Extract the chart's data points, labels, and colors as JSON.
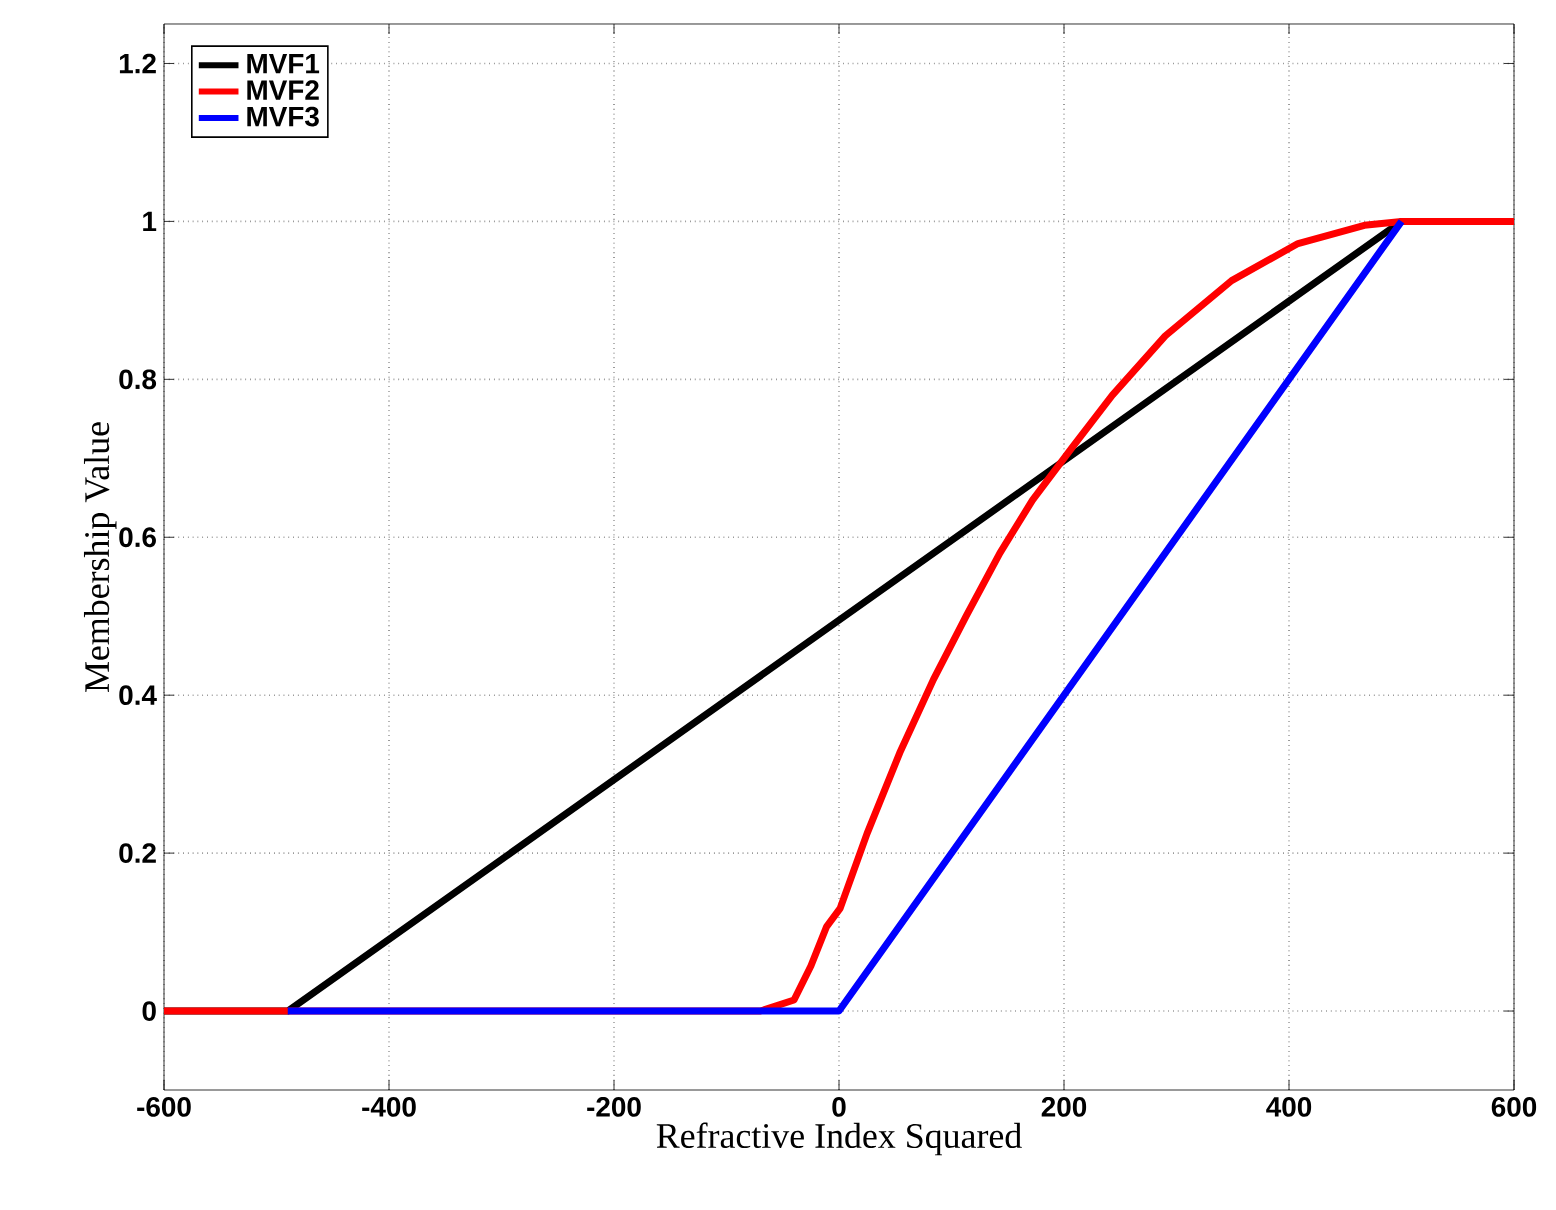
{
  "chart_data": {
    "type": "line",
    "xlabel": "Refractive Index Squared",
    "ylabel": "Membership Value",
    "xlim": [
      -600,
      600
    ],
    "ylim": [
      -0.1,
      1.25
    ],
    "xticks": [
      -600,
      -400,
      -200,
      0,
      200,
      400,
      600
    ],
    "yticks": [
      0,
      0.2,
      0.4,
      0.6,
      0.8,
      1,
      1.2
    ],
    "grid": true,
    "legend": "top left",
    "line_style": "solid",
    "marker": "none",
    "series": [
      {
        "name": "MVF1",
        "color": "#000000",
        "x": [
          -600,
          -490,
          500,
          600
        ],
        "values": [
          0,
          0,
          1,
          1
        ]
      },
      {
        "name": "MVF2",
        "color": "#ff0000",
        "x": [
          -600,
          -70,
          -40,
          -25,
          -11,
          1,
          25,
          54,
          84,
          113,
          143,
          172,
          208,
          243,
          290,
          349,
          408,
          467,
          500,
          600
        ],
        "values": [
          0,
          0,
          0.014,
          0.057,
          0.107,
          0.13,
          0.225,
          0.327,
          0.42,
          0.5,
          0.58,
          0.647,
          0.715,
          0.78,
          0.855,
          0.925,
          0.972,
          0.995,
          1,
          1
        ]
      },
      {
        "name": "MVF3",
        "color": "#0000ff",
        "x": [
          -490,
          0,
          500
        ],
        "values": [
          0,
          0,
          1
        ]
      }
    ]
  }
}
